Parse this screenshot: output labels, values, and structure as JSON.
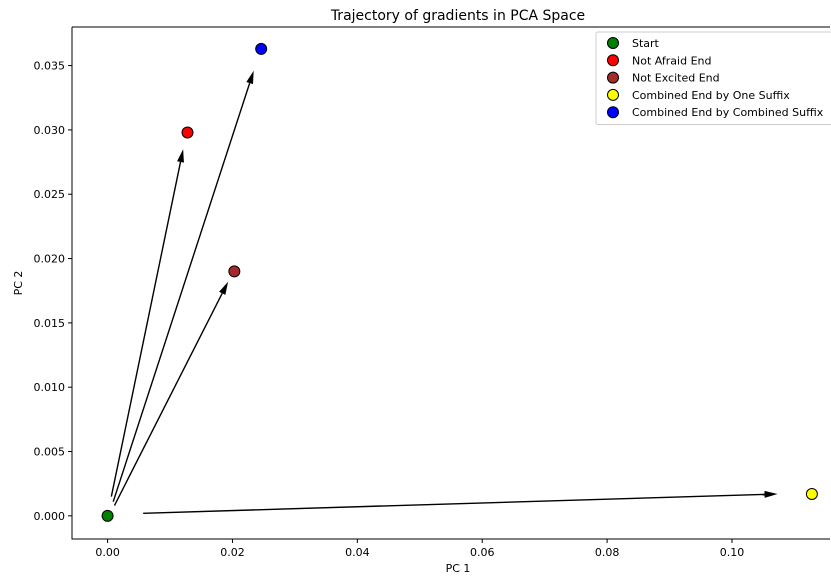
{
  "chart_data": {
    "type": "scatter",
    "title": "Trajectory of gradients in PCA Space",
    "xlabel": "PC 1",
    "ylabel": "PC 2",
    "xlim": [
      -0.0057,
      0.1157
    ],
    "ylim": [
      -0.0018,
      0.038
    ],
    "x_ticks": [
      0.0,
      0.02,
      0.04,
      0.06,
      0.08,
      0.1
    ],
    "x_tick_labels": [
      "0.00",
      "0.02",
      "0.04",
      "0.06",
      "0.08",
      "0.10"
    ],
    "y_ticks": [
      0.0,
      0.005,
      0.01,
      0.015,
      0.02,
      0.025,
      0.03,
      0.035
    ],
    "y_tick_labels": [
      "0.000",
      "0.005",
      "0.010",
      "0.015",
      "0.020",
      "0.025",
      "0.030",
      "0.035"
    ],
    "grid": false,
    "legend_position": "top-right",
    "points": [
      {
        "name": "Start",
        "x": 0.0,
        "y": 0.0,
        "color": "#008000"
      },
      {
        "name": "Not Afraid End",
        "x": 0.0128,
        "y": 0.0298,
        "color": "#ff0000"
      },
      {
        "name": "Not Excited End",
        "x": 0.0203,
        "y": 0.019,
        "color": "#a52a2a"
      },
      {
        "name": "Combined End by One Suffix",
        "x": 0.1128,
        "y": 0.0017,
        "color": "#ffff00"
      },
      {
        "name": "Combined End by Combined Suffix",
        "x": 0.0246,
        "y": 0.0363,
        "color": "#0000ff"
      }
    ],
    "arrows": [
      {
        "from": [
          0.0006,
          0.0015
        ],
        "to": [
          0.0121,
          0.0285
        ]
      },
      {
        "from": [
          0.0009,
          0.0011
        ],
        "to": [
          0.0234,
          0.0346
        ]
      },
      {
        "from": [
          0.0011,
          0.0008
        ],
        "to": [
          0.0193,
          0.0182
        ]
      },
      {
        "from": [
          0.0057,
          0.0002
        ],
        "to": [
          0.1073,
          0.0017
        ]
      }
    ]
  }
}
